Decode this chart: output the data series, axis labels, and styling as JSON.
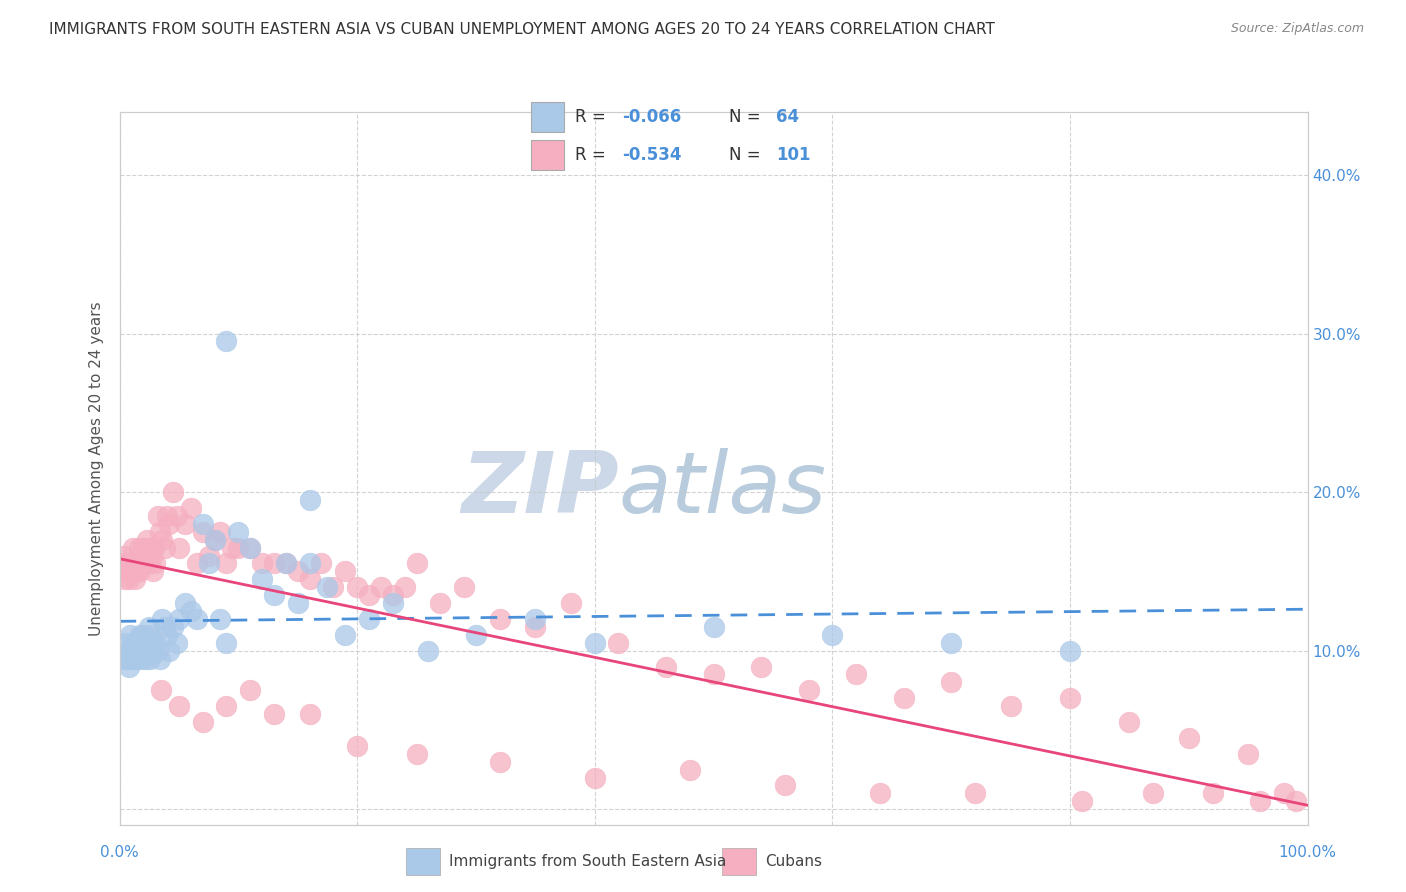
{
  "title": "IMMIGRANTS FROM SOUTH EASTERN ASIA VS CUBAN UNEMPLOYMENT AMONG AGES 20 TO 24 YEARS CORRELATION CHART",
  "source": "Source: ZipAtlas.com",
  "ylabel": "Unemployment Among Ages 20 to 24 years",
  "xlim": [
    0,
    1.0
  ],
  "ylim": [
    -0.01,
    0.44
  ],
  "xticks": [
    0.0,
    0.2,
    0.4,
    0.6,
    0.8,
    1.0
  ],
  "xticklabels": [
    "0.0%",
    "",
    "",
    "",
    "",
    "100.0%"
  ],
  "yticks": [
    0.0,
    0.1,
    0.2,
    0.3,
    0.4
  ],
  "yticklabels_right": [
    "",
    "10.0%",
    "20.0%",
    "30.0%",
    "40.0%"
  ],
  "blue_R": "-0.066",
  "blue_N": "64",
  "pink_R": "-0.534",
  "pink_N": "101",
  "blue_color": "#aac8e8",
  "pink_color": "#f5afc0",
  "blue_line_color": "#4a90d9",
  "pink_line_color": "#e8457a",
  "watermark_zip_color": "#ccd8e8",
  "watermark_atlas_color": "#b8ccde",
  "background_color": "#ffffff",
  "grid_color": "#c8c8c8",
  "legend_label_blue": "Immigrants from South Eastern Asia",
  "legend_label_pink": "Cubans",
  "blue_scatter_x": [
    0.003,
    0.005,
    0.006,
    0.007,
    0.008,
    0.009,
    0.01,
    0.011,
    0.012,
    0.013,
    0.014,
    0.015,
    0.016,
    0.017,
    0.018,
    0.019,
    0.02,
    0.021,
    0.022,
    0.023,
    0.024,
    0.025,
    0.026,
    0.027,
    0.028,
    0.03,
    0.032,
    0.034,
    0.036,
    0.038,
    0.04,
    0.042,
    0.045,
    0.048,
    0.05,
    0.055,
    0.06,
    0.065,
    0.07,
    0.075,
    0.08,
    0.085,
    0.09,
    0.1,
    0.11,
    0.12,
    0.13,
    0.14,
    0.15,
    0.16,
    0.175,
    0.19,
    0.21,
    0.23,
    0.26,
    0.3,
    0.35,
    0.4,
    0.5,
    0.6,
    0.7,
    0.8,
    0.16,
    0.09
  ],
  "blue_scatter_y": [
    0.095,
    0.105,
    0.095,
    0.1,
    0.09,
    0.11,
    0.1,
    0.095,
    0.105,
    0.1,
    0.095,
    0.105,
    0.1,
    0.11,
    0.095,
    0.1,
    0.11,
    0.105,
    0.095,
    0.1,
    0.11,
    0.115,
    0.095,
    0.105,
    0.1,
    0.105,
    0.1,
    0.095,
    0.12,
    0.115,
    0.11,
    0.1,
    0.115,
    0.105,
    0.12,
    0.13,
    0.125,
    0.12,
    0.18,
    0.155,
    0.17,
    0.12,
    0.105,
    0.175,
    0.165,
    0.145,
    0.135,
    0.155,
    0.13,
    0.155,
    0.14,
    0.11,
    0.12,
    0.13,
    0.1,
    0.11,
    0.12,
    0.105,
    0.115,
    0.11,
    0.105,
    0.1,
    0.195,
    0.295
  ],
  "pink_scatter_x": [
    0.003,
    0.004,
    0.005,
    0.006,
    0.007,
    0.008,
    0.009,
    0.01,
    0.011,
    0.012,
    0.013,
    0.014,
    0.015,
    0.016,
    0.017,
    0.018,
    0.019,
    0.02,
    0.021,
    0.022,
    0.023,
    0.024,
    0.025,
    0.026,
    0.027,
    0.028,
    0.029,
    0.03,
    0.032,
    0.034,
    0.036,
    0.038,
    0.04,
    0.042,
    0.045,
    0.048,
    0.05,
    0.055,
    0.06,
    0.065,
    0.07,
    0.075,
    0.08,
    0.085,
    0.09,
    0.095,
    0.1,
    0.11,
    0.12,
    0.13,
    0.14,
    0.15,
    0.16,
    0.17,
    0.18,
    0.19,
    0.2,
    0.21,
    0.22,
    0.23,
    0.24,
    0.25,
    0.27,
    0.29,
    0.32,
    0.35,
    0.38,
    0.42,
    0.46,
    0.5,
    0.54,
    0.58,
    0.62,
    0.66,
    0.7,
    0.75,
    0.8,
    0.85,
    0.9,
    0.95,
    0.98,
    0.05,
    0.07,
    0.09,
    0.11,
    0.13,
    0.16,
    0.2,
    0.25,
    0.32,
    0.4,
    0.48,
    0.56,
    0.64,
    0.72,
    0.81,
    0.87,
    0.92,
    0.96,
    0.99,
    0.035
  ],
  "pink_scatter_y": [
    0.155,
    0.16,
    0.145,
    0.155,
    0.15,
    0.145,
    0.155,
    0.15,
    0.165,
    0.155,
    0.145,
    0.15,
    0.155,
    0.165,
    0.15,
    0.16,
    0.155,
    0.165,
    0.155,
    0.16,
    0.17,
    0.165,
    0.155,
    0.165,
    0.16,
    0.15,
    0.165,
    0.155,
    0.185,
    0.175,
    0.17,
    0.165,
    0.185,
    0.18,
    0.2,
    0.185,
    0.165,
    0.18,
    0.19,
    0.155,
    0.175,
    0.16,
    0.17,
    0.175,
    0.155,
    0.165,
    0.165,
    0.165,
    0.155,
    0.155,
    0.155,
    0.15,
    0.145,
    0.155,
    0.14,
    0.15,
    0.14,
    0.135,
    0.14,
    0.135,
    0.14,
    0.155,
    0.13,
    0.14,
    0.12,
    0.115,
    0.13,
    0.105,
    0.09,
    0.085,
    0.09,
    0.075,
    0.085,
    0.07,
    0.08,
    0.065,
    0.07,
    0.055,
    0.045,
    0.035,
    0.01,
    0.065,
    0.055,
    0.065,
    0.075,
    0.06,
    0.06,
    0.04,
    0.035,
    0.03,
    0.02,
    0.025,
    0.015,
    0.01,
    0.01,
    0.005,
    0.01,
    0.01,
    0.005,
    0.005,
    0.075
  ]
}
